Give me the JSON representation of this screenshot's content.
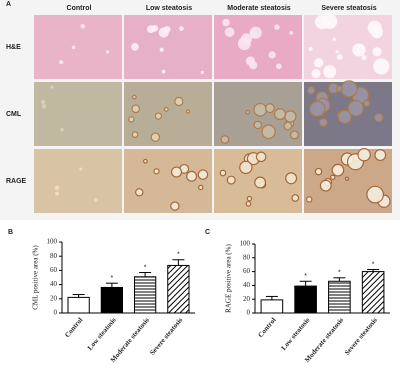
{
  "panel_a": {
    "label": "A",
    "columns": [
      "Control",
      "Low steatosis",
      "Moderate steatosis",
      "Severe steatosis"
    ],
    "rows": [
      "H&E",
      "CML",
      "RAGE"
    ]
  },
  "chart_data": [
    {
      "panel": "B",
      "type": "bar",
      "ylabel": "CML positive area (%)",
      "categories": [
        "Control",
        "Low steatosis",
        "Moderate steatosis",
        "Severe steatosis"
      ],
      "values": [
        22,
        36,
        51,
        67
      ],
      "errors": [
        4,
        6,
        6,
        8
      ],
      "markers": [
        null,
        "*",
        "*",
        "*"
      ],
      "patterns": [
        "none",
        "solid",
        "horizontal",
        "diagonal"
      ],
      "color": "#000000",
      "ylim": [
        0,
        100
      ],
      "yticks": [
        0,
        20,
        40,
        60,
        80,
        100
      ]
    },
    {
      "panel": "C",
      "type": "bar",
      "ylabel": "RAGE positive area (%)",
      "categories": [
        "Control",
        "Low steatosis",
        "Moderate steatosis",
        "Severe steatosis"
      ],
      "values": [
        19,
        39,
        46,
        60
      ],
      "errors": [
        5,
        7,
        5,
        3
      ],
      "markers": [
        null,
        "*",
        "*",
        "*"
      ],
      "patterns": [
        "none",
        "solid",
        "horizontal",
        "diagonal"
      ],
      "color": "#000000",
      "ylim": [
        0,
        100
      ],
      "yticks": [
        0,
        20,
        40,
        60,
        80,
        100
      ]
    }
  ]
}
